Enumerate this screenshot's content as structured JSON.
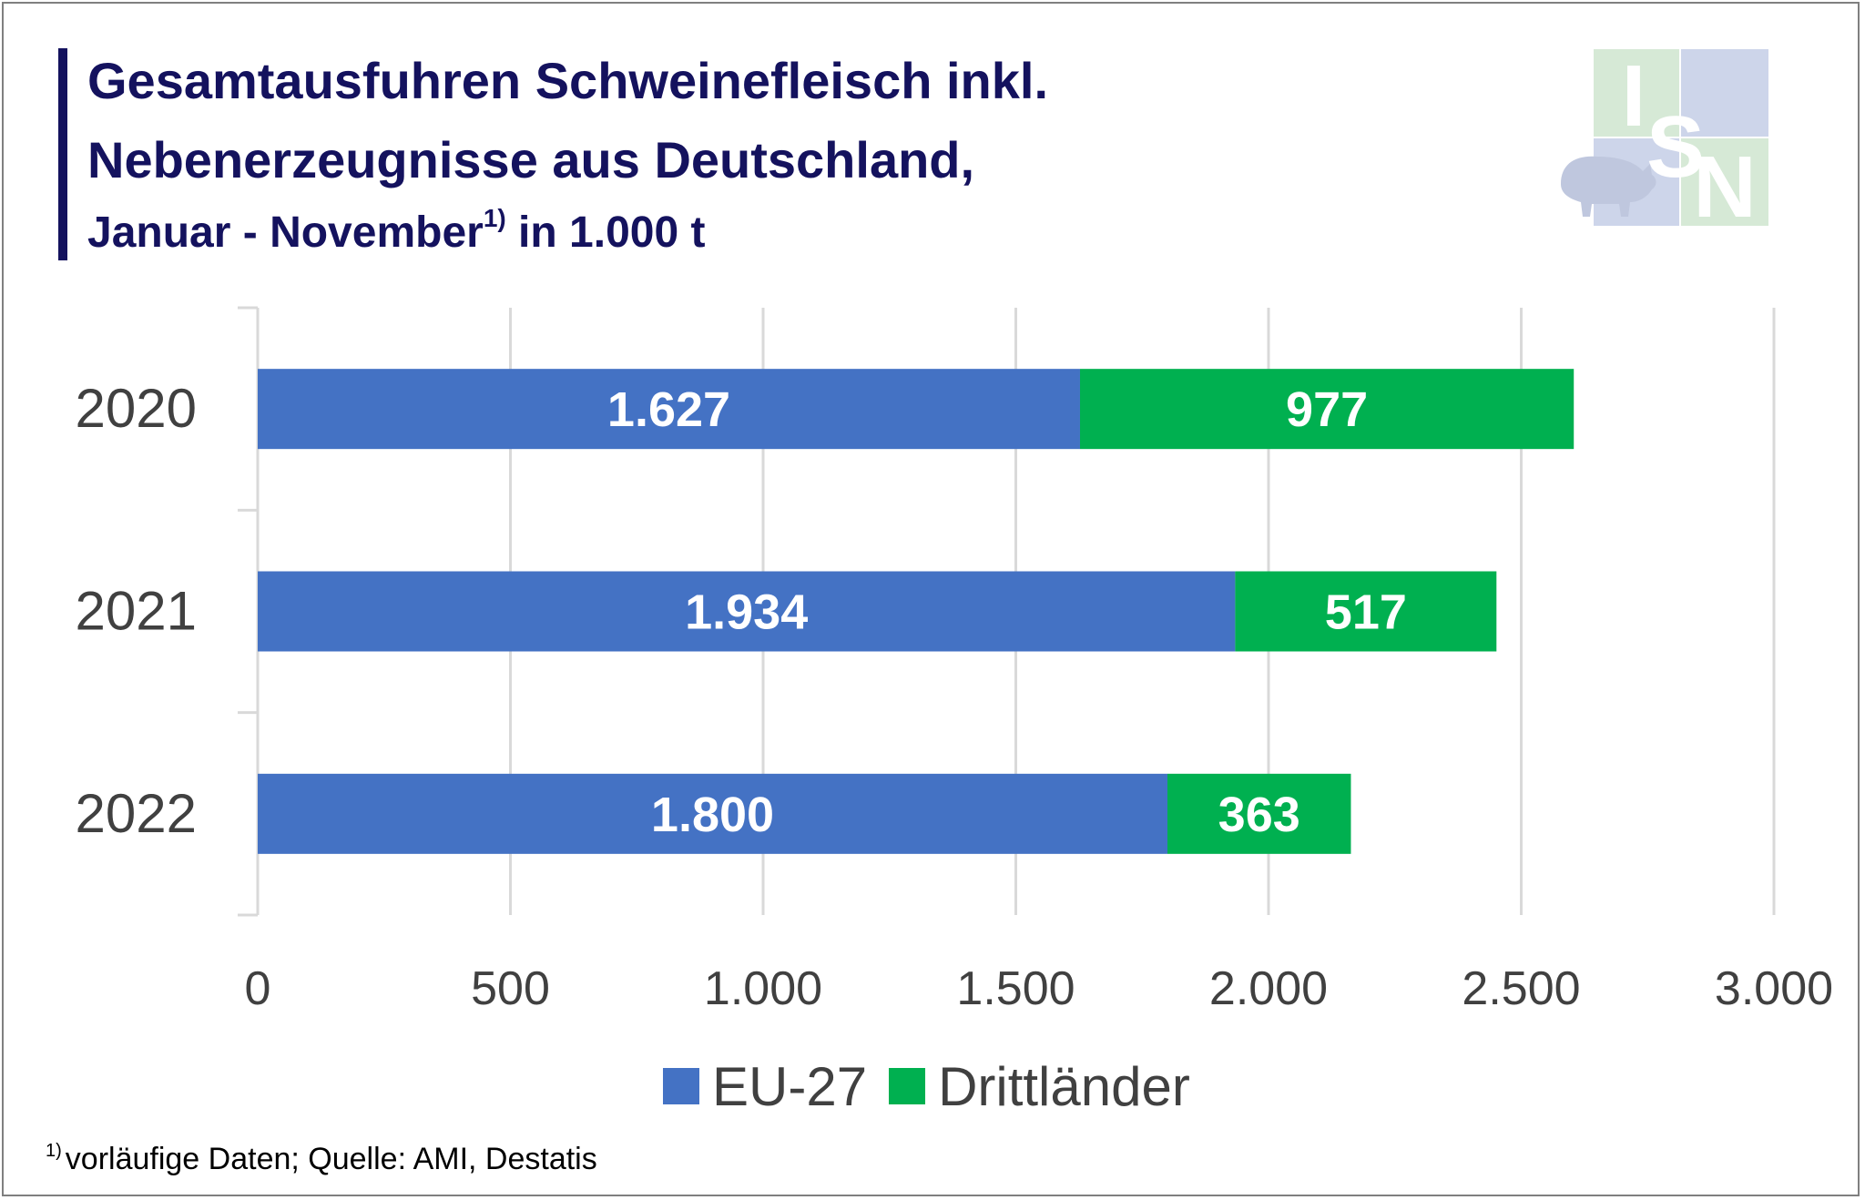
{
  "header": {
    "title_line1": "Gesamtausfuhren Schweinefleisch inkl.",
    "title_line2": "Nebenerzeugnisse aus Deutschland,",
    "subtitle_pre": "Januar - November",
    "subtitle_sup": "1)",
    "subtitle_post": " in 1.000 t"
  },
  "logo": {
    "letters": [
      "I",
      "S",
      "N"
    ]
  },
  "footnote": {
    "sup": "1)",
    "text": "vorläufige Daten; Quelle: AMI, Destatis"
  },
  "colors": {
    "eu": "#4472c4",
    "third": "#00b050",
    "title": "#14125e",
    "grid": "#d9d9d9",
    "axis_text": "#404040"
  },
  "chart_data": {
    "type": "bar",
    "orientation": "horizontal",
    "stacked": true,
    "categories": [
      "2020",
      "2021",
      "2022"
    ],
    "series": [
      {
        "name": "EU-27",
        "values": [
          1627,
          1934,
          1800
        ],
        "labels": [
          "1.627",
          "1.934",
          "1.800"
        ]
      },
      {
        "name": "Drittländer",
        "values": [
          977,
          517,
          363
        ],
        "labels": [
          "977",
          "517",
          "363"
        ]
      }
    ],
    "xlim": [
      0,
      3000
    ],
    "xticks": [
      0,
      500,
      1000,
      1500,
      2000,
      2500,
      3000
    ],
    "xtick_labels": [
      "0",
      "500",
      "1.000",
      "1.500",
      "2.000",
      "2.500",
      "3.000"
    ],
    "grid": "vertical",
    "legend_position": "bottom",
    "footnote_unit": "in 1.000 t"
  }
}
